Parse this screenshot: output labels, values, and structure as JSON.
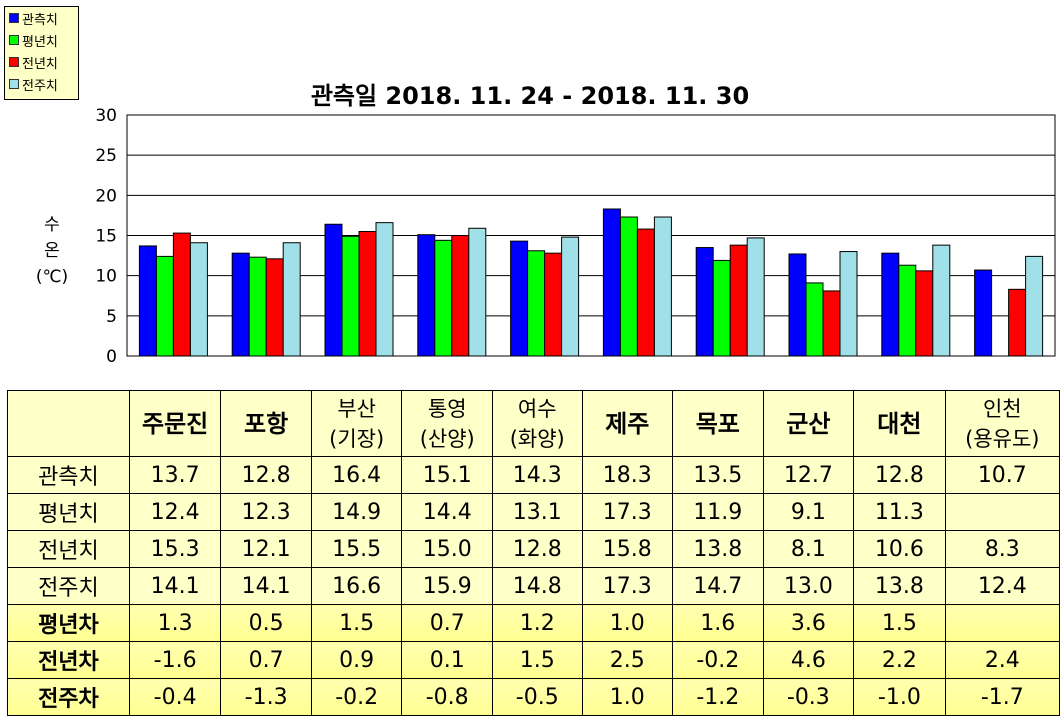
{
  "chart_data": {
    "type": "bar",
    "title": "관측일 2018. 11. 24 - 2018. 11. 30",
    "ylabel": [
      "수",
      "온",
      "(℃)"
    ],
    "ylim": [
      0,
      30
    ],
    "yticks": [
      0,
      5,
      10,
      15,
      20,
      25,
      30
    ],
    "grid": true,
    "legend_position": "top-left",
    "categories": [
      "주문진",
      "포항",
      "부산(기장)",
      "통영(산양)",
      "여수(화양)",
      "제주",
      "목포",
      "군산",
      "대천",
      "인천(용유도)"
    ],
    "series": [
      {
        "name": "관측치",
        "color": "#0000ff",
        "values": [
          13.7,
          12.8,
          16.4,
          15.1,
          14.3,
          18.3,
          13.5,
          12.7,
          12.8,
          10.7
        ]
      },
      {
        "name": "평년치",
        "color": "#00ff00",
        "values": [
          12.4,
          12.3,
          14.9,
          14.4,
          13.1,
          17.3,
          11.9,
          9.1,
          11.3,
          null
        ]
      },
      {
        "name": "전년치",
        "color": "#ff0000",
        "values": [
          15.3,
          12.1,
          15.5,
          15.0,
          12.8,
          15.8,
          13.8,
          8.1,
          10.6,
          8.3
        ]
      },
      {
        "name": "전주치",
        "color": "#a0e0e8",
        "values": [
          14.1,
          14.1,
          16.6,
          15.9,
          14.8,
          17.3,
          14.7,
          13.0,
          13.8,
          12.4
        ]
      }
    ]
  },
  "table": {
    "headers": [
      {
        "line1": "주문진",
        "line2": "",
        "bold": true
      },
      {
        "line1": "포항",
        "line2": "",
        "bold": true
      },
      {
        "line1": "부산",
        "line2": "(기장)",
        "bold": false
      },
      {
        "line1": "통영",
        "line2": "(산양)",
        "bold": false
      },
      {
        "line1": "여수",
        "line2": "(화양)",
        "bold": false
      },
      {
        "line1": "제주",
        "line2": "",
        "bold": true
      },
      {
        "line1": "목포",
        "line2": "",
        "bold": true
      },
      {
        "line1": "군산",
        "line2": "",
        "bold": true
      },
      {
        "line1": "대천",
        "line2": "",
        "bold": true
      },
      {
        "line1": "인천",
        "line2": "(용유도)",
        "bold": false
      }
    ],
    "rows": [
      {
        "label": "관측치",
        "diff": false,
        "values": [
          "13.7",
          "12.8",
          "16.4",
          "15.1",
          "14.3",
          "18.3",
          "13.5",
          "12.7",
          "12.8",
          "10.7"
        ]
      },
      {
        "label": "평년치",
        "diff": false,
        "values": [
          "12.4",
          "12.3",
          "14.9",
          "14.4",
          "13.1",
          "17.3",
          "11.9",
          "9.1",
          "11.3",
          ""
        ]
      },
      {
        "label": "전년치",
        "diff": false,
        "values": [
          "15.3",
          "12.1",
          "15.5",
          "15.0",
          "12.8",
          "15.8",
          "13.8",
          "8.1",
          "10.6",
          "8.3"
        ]
      },
      {
        "label": "전주치",
        "diff": false,
        "values": [
          "14.1",
          "14.1",
          "16.6",
          "15.9",
          "14.8",
          "17.3",
          "14.7",
          "13.0",
          "13.8",
          "12.4"
        ]
      },
      {
        "label": "평년차",
        "diff": true,
        "values": [
          "1.3",
          "0.5",
          "1.5",
          "0.7",
          "1.2",
          "1.0",
          "1.6",
          "3.6",
          "1.5",
          ""
        ]
      },
      {
        "label": "전년차",
        "diff": true,
        "values": [
          "-1.6",
          "0.7",
          "0.9",
          "0.1",
          "1.5",
          "2.5",
          "-0.2",
          "4.6",
          "2.2",
          "2.4"
        ]
      },
      {
        "label": "전주차",
        "diff": true,
        "values": [
          "-0.4",
          "-1.3",
          "-0.2",
          "-0.8",
          "-0.5",
          "1.0",
          "-1.2",
          "-0.3",
          "-1.0",
          "-1.7"
        ]
      }
    ]
  }
}
